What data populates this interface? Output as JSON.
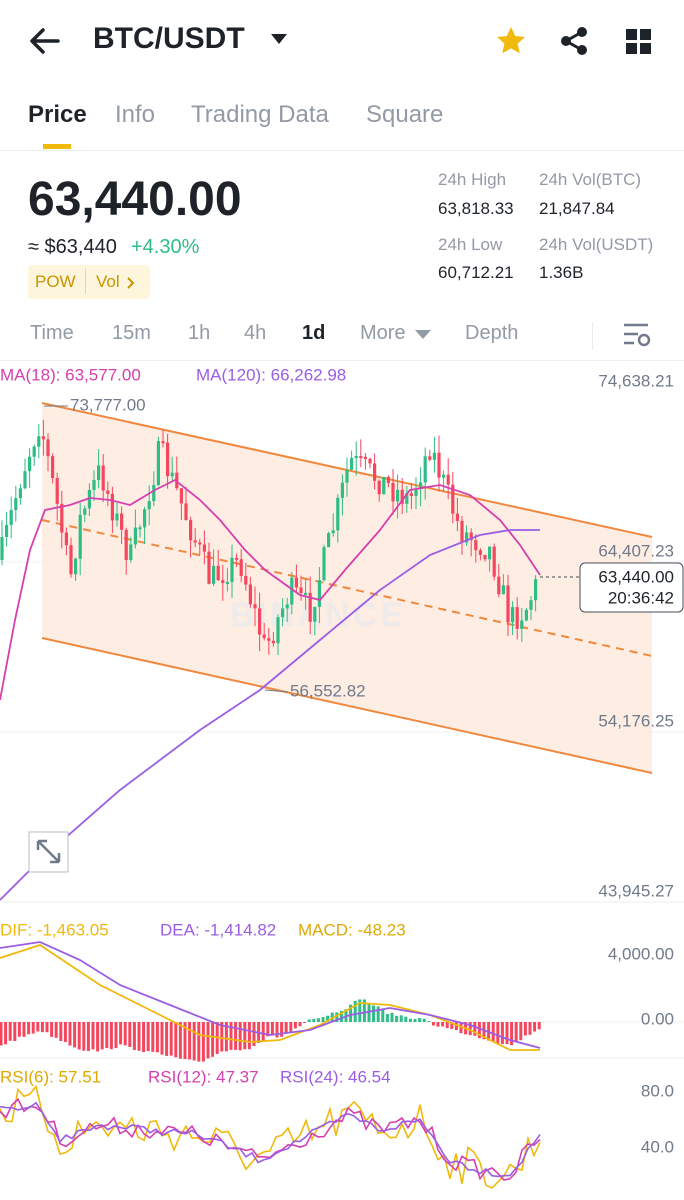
{
  "header": {
    "pair": "BTC/USDT"
  },
  "tabs": [
    "Price",
    "Info",
    "Trading Data",
    "Square"
  ],
  "ticker": {
    "price": "63,440.00",
    "fiat": "≈ $63,440",
    "change": "+4.30%",
    "tags": [
      "POW",
      "Vol"
    ]
  },
  "stats": [
    {
      "label": "24h High",
      "value": "63,818.33"
    },
    {
      "label": "24h Vol(BTC)",
      "value": "21,847.84"
    },
    {
      "label": "24h Low",
      "value": "60,712.21"
    },
    {
      "label": "24h Vol(USDT)",
      "value": "1.36B"
    }
  ],
  "intervals": [
    "Time",
    "15m",
    "1h",
    "4h",
    "1d",
    "More",
    "Depth"
  ],
  "main_chart": {
    "indicators": [
      "MA(18): 63,577.00",
      "MA(120): 66,262.98"
    ],
    "axis": [
      "74,638.21",
      "64,407.23",
      "54,176.25",
      "43,945.27"
    ],
    "high_label": "73,777.00",
    "low_label": "56,552.82",
    "last_price": "63,440.00",
    "countdown": "20:36:42",
    "watermark": "BINANCE"
  },
  "macd": {
    "indicators": [
      "DIF: -1,463.05",
      "DEA: -1,414.82",
      "MACD: -48.23"
    ],
    "axis": [
      "4,000.00",
      "0.00"
    ]
  },
  "rsi": {
    "indicators": [
      "RSI(6): 57.51",
      "RSI(12): 47.37",
      "RSI(24): 46.54"
    ],
    "axis": [
      "80.0",
      "40.0"
    ]
  }
}
